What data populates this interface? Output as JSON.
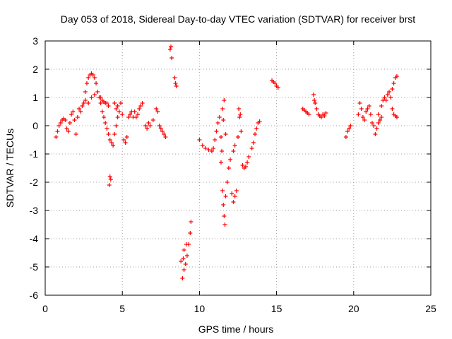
{
  "chart_data": {
    "type": "scatter",
    "title": "Day 053 of 2018, Sidereal Day-to-day VTEC variation (SDTVAR) for receiver brst",
    "xlabel": "GPS time / hours",
    "ylabel": "SDTVAR / TECUs",
    "xlim": [
      0,
      25
    ],
    "ylim": [
      -6,
      3
    ],
    "xticks": [
      "0",
      "5",
      "10",
      "15",
      "20",
      "25"
    ],
    "yticks": [
      "3",
      "2",
      "1",
      "0",
      "-1",
      "-2",
      "-3",
      "-4",
      "-5",
      "-6"
    ],
    "grid": true,
    "marker": "+",
    "color": "#ff0000",
    "series": [
      {
        "name": "SDTVAR",
        "points": [
          [
            0.7,
            -0.4
          ],
          [
            0.8,
            -0.2
          ],
          [
            0.9,
            0.0
          ],
          [
            1.0,
            0.1
          ],
          [
            1.1,
            0.2
          ],
          [
            1.2,
            0.25
          ],
          [
            1.3,
            0.2
          ],
          [
            1.4,
            -0.1
          ],
          [
            1.5,
            -0.2
          ],
          [
            1.6,
            0.1
          ],
          [
            1.7,
            0.4
          ],
          [
            1.8,
            0.5
          ],
          [
            1.9,
            0.2
          ],
          [
            2.0,
            -0.3
          ],
          [
            2.1,
            0.3
          ],
          [
            2.2,
            0.6
          ],
          [
            2.3,
            0.5
          ],
          [
            2.4,
            0.7
          ],
          [
            2.5,
            0.8
          ],
          [
            2.6,
            1.2
          ],
          [
            2.7,
            1.5
          ],
          [
            2.8,
            1.7
          ],
          [
            2.9,
            1.8
          ],
          [
            3.0,
            1.85
          ],
          [
            3.1,
            1.8
          ],
          [
            3.2,
            1.7
          ],
          [
            3.3,
            1.5
          ],
          [
            3.4,
            1.2
          ],
          [
            3.5,
            1.0
          ],
          [
            3.6,
            0.8
          ],
          [
            3.7,
            0.5
          ],
          [
            3.8,
            0.3
          ],
          [
            3.9,
            0.1
          ],
          [
            4.0,
            -0.1
          ],
          [
            4.1,
            -0.3
          ],
          [
            4.2,
            -0.5
          ],
          [
            4.3,
            -0.6
          ],
          [
            4.4,
            -0.7
          ],
          [
            4.5,
            -0.3
          ],
          [
            4.6,
            0.0
          ],
          [
            4.7,
            0.3
          ],
          [
            4.8,
            0.5
          ],
          [
            4.9,
            0.8
          ],
          [
            5.0,
            0.4
          ],
          [
            5.1,
            -0.5
          ],
          [
            5.2,
            -0.6
          ],
          [
            5.3,
            -0.4
          ],
          [
            5.4,
            0.3
          ],
          [
            5.5,
            0.4
          ],
          [
            5.6,
            0.5
          ],
          [
            5.7,
            0.3
          ],
          [
            5.8,
            0.5
          ],
          [
            5.9,
            0.3
          ],
          [
            6.0,
            0.4
          ],
          [
            6.1,
            0.6
          ],
          [
            6.2,
            0.7
          ],
          [
            6.3,
            0.8
          ],
          [
            6.5,
            0.0
          ],
          [
            6.6,
            -0.1
          ],
          [
            6.7,
            0.1
          ],
          [
            6.8,
            0.0
          ],
          [
            7.0,
            0.2
          ],
          [
            7.2,
            0.6
          ],
          [
            7.3,
            0.5
          ],
          [
            7.4,
            0.0
          ],
          [
            7.5,
            -0.1
          ],
          [
            7.6,
            -0.2
          ],
          [
            7.7,
            -0.3
          ],
          [
            7.8,
            -0.4
          ],
          [
            3.6,
            1.0
          ],
          [
            3.7,
            0.9
          ],
          [
            3.8,
            0.85
          ],
          [
            3.9,
            0.8
          ],
          [
            4.0,
            0.8
          ],
          [
            4.1,
            0.7
          ],
          [
            4.5,
            0.8
          ],
          [
            4.6,
            0.6
          ],
          [
            4.7,
            0.7
          ],
          [
            2.6,
            0.9
          ],
          [
            2.8,
            0.8
          ],
          [
            3.0,
            1.0
          ],
          [
            3.2,
            1.1
          ],
          [
            4.2,
            -1.8
          ],
          [
            4.15,
            -2.1
          ],
          [
            4.25,
            -1.9
          ],
          [
            8.1,
            2.7
          ],
          [
            8.15,
            2.8
          ],
          [
            8.2,
            2.4
          ],
          [
            8.4,
            1.7
          ],
          [
            8.45,
            1.5
          ],
          [
            8.5,
            1.4
          ],
          [
            8.8,
            -4.8
          ],
          [
            8.9,
            -5.4
          ],
          [
            9.0,
            -5.1
          ],
          [
            9.1,
            -4.9
          ],
          [
            9.2,
            -4.6
          ],
          [
            9.3,
            -4.2
          ],
          [
            9.4,
            -3.8
          ],
          [
            9.45,
            -3.4
          ],
          [
            9.0,
            -4.4
          ],
          [
            8.95,
            -4.7
          ],
          [
            9.15,
            -4.2
          ],
          [
            10.0,
            -0.5
          ],
          [
            10.2,
            -0.7
          ],
          [
            10.4,
            -0.8
          ],
          [
            10.6,
            -0.85
          ],
          [
            10.8,
            -0.9
          ],
          [
            10.9,
            -0.8
          ],
          [
            11.0,
            -0.5
          ],
          [
            11.1,
            -0.2
          ],
          [
            11.2,
            0.1
          ],
          [
            11.3,
            0.3
          ],
          [
            11.4,
            -0.4
          ],
          [
            11.5,
            -2.3
          ],
          [
            11.55,
            -2.8
          ],
          [
            11.6,
            -3.2
          ],
          [
            11.65,
            -3.5
          ],
          [
            11.7,
            -2.5
          ],
          [
            11.8,
            -2.0
          ],
          [
            11.9,
            -1.5
          ],
          [
            12.0,
            -1.2
          ],
          [
            12.1,
            -2.4
          ],
          [
            12.2,
            -2.7
          ],
          [
            12.3,
            -2.5
          ],
          [
            12.4,
            -2.3
          ],
          [
            12.5,
            -0.4
          ],
          [
            12.6,
            0.3
          ],
          [
            12.7,
            -0.2
          ],
          [
            12.8,
            -1.4
          ],
          [
            12.9,
            -1.5
          ],
          [
            13.0,
            -1.45
          ],
          [
            13.1,
            -1.3
          ],
          [
            13.2,
            -1.1
          ],
          [
            13.4,
            -0.8
          ],
          [
            13.5,
            -0.6
          ],
          [
            13.6,
            -0.3
          ],
          [
            13.7,
            -0.1
          ],
          [
            13.8,
            0.1
          ],
          [
            13.9,
            0.15
          ],
          [
            11.5,
            0.6
          ],
          [
            11.6,
            0.9
          ],
          [
            11.55,
            0.2
          ],
          [
            11.7,
            -0.3
          ],
          [
            12.2,
            -0.9
          ],
          [
            12.3,
            -0.7
          ],
          [
            11.4,
            -1.3
          ],
          [
            11.45,
            -0.9
          ],
          [
            12.55,
            0.6
          ],
          [
            12.65,
            0.4
          ],
          [
            14.7,
            1.6
          ],
          [
            14.8,
            1.55
          ],
          [
            14.9,
            1.5
          ],
          [
            15.0,
            1.4
          ],
          [
            15.1,
            1.35
          ],
          [
            16.7,
            0.6
          ],
          [
            16.8,
            0.55
          ],
          [
            16.9,
            0.5
          ],
          [
            17.0,
            0.45
          ],
          [
            17.1,
            0.4
          ],
          [
            17.4,
            1.1
          ],
          [
            17.45,
            0.9
          ],
          [
            17.5,
            0.8
          ],
          [
            17.6,
            0.6
          ],
          [
            17.7,
            0.4
          ],
          [
            17.8,
            0.35
          ],
          [
            17.9,
            0.3
          ],
          [
            18.0,
            0.4
          ],
          [
            18.1,
            0.35
          ],
          [
            18.2,
            0.45
          ],
          [
            19.5,
            -0.4
          ],
          [
            19.6,
            -0.2
          ],
          [
            19.7,
            -0.1
          ],
          [
            19.8,
            0.0
          ],
          [
            20.3,
            0.4
          ],
          [
            20.4,
            0.8
          ],
          [
            20.5,
            0.6
          ],
          [
            20.6,
            0.3
          ],
          [
            20.7,
            0.2
          ],
          [
            20.8,
            0.5
          ],
          [
            20.9,
            0.6
          ],
          [
            21.0,
            0.7
          ],
          [
            21.1,
            0.4
          ],
          [
            21.2,
            0.1
          ],
          [
            21.3,
            0.0
          ],
          [
            21.4,
            -0.3
          ],
          [
            21.5,
            -0.1
          ],
          [
            21.6,
            0.1
          ],
          [
            21.7,
            0.2
          ],
          [
            21.8,
            0.7
          ],
          [
            21.9,
            0.9
          ],
          [
            22.0,
            1.0
          ],
          [
            22.1,
            0.9
          ],
          [
            22.2,
            1.1
          ],
          [
            22.3,
            1.2
          ],
          [
            22.4,
            1.0
          ],
          [
            22.5,
            1.3
          ],
          [
            22.6,
            1.5
          ],
          [
            22.7,
            1.7
          ],
          [
            22.8,
            1.75
          ],
          [
            22.6,
            0.4
          ],
          [
            22.7,
            0.35
          ],
          [
            22.8,
            0.3
          ],
          [
            22.5,
            0.6
          ],
          [
            21.6,
            0.4
          ],
          [
            21.8,
            0.3
          ]
        ]
      }
    ]
  }
}
